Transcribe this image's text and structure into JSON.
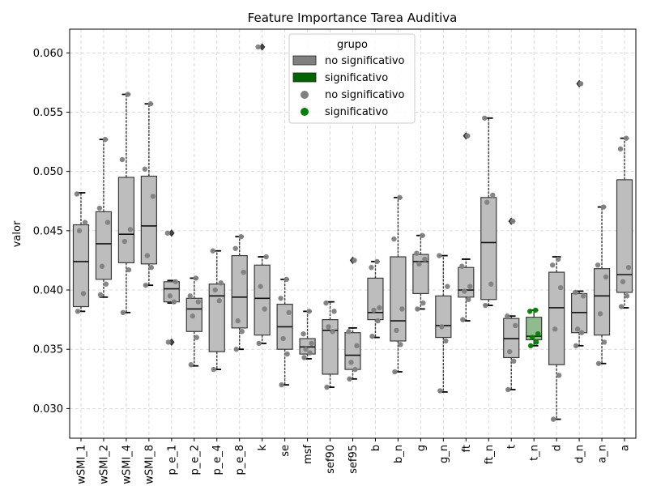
{
  "chart_data": {
    "type": "box",
    "title": "Feature Importance Tarea Auditiva",
    "xlabel": "",
    "ylabel": "valor",
    "ylim": [
      0.0275,
      0.062
    ],
    "yticks": [
      0.03,
      0.035,
      0.04,
      0.045,
      0.05,
      0.055,
      0.06
    ],
    "ytick_labels": [
      "0.030",
      "0.035",
      "0.040",
      "0.045",
      "0.050",
      "0.055",
      "0.060"
    ],
    "grid": true,
    "legend": {
      "title": "grupo",
      "placement": "top-center",
      "entries": [
        {
          "label": "no significativo",
          "kind": "patch",
          "color": "#808080"
        },
        {
          "label": "significativo",
          "kind": "patch",
          "color": "#006400"
        },
        {
          "label": "no significativo",
          "kind": "marker",
          "color": "#808080"
        },
        {
          "label": "significativo",
          "kind": "marker",
          "color": "#008000"
        }
      ]
    },
    "colors": {
      "no_sig_box": "#bdbdbd",
      "sig_box": "#8fbc8f",
      "no_sig_point": "#808080",
      "sig_point": "#008000",
      "edge": "#3a3a3a"
    },
    "boxes": [
      {
        "label": "wSMI_1",
        "group": "no significativo",
        "whislo": 0.0382,
        "q1": 0.0386,
        "med": 0.0424,
        "q3": 0.0455,
        "whishi": 0.0482,
        "fliers": [],
        "points": [
          0.0382,
          0.0397,
          0.045,
          0.0457,
          0.0481
        ]
      },
      {
        "label": "wSMI_2",
        "group": "no significativo",
        "whislo": 0.0394,
        "q1": 0.0409,
        "med": 0.0439,
        "q3": 0.0466,
        "whishi": 0.0527,
        "fliers": [],
        "points": [
          0.0396,
          0.0405,
          0.042,
          0.0457,
          0.0469,
          0.0527
        ]
      },
      {
        "label": "wSMI_4",
        "group": "no significativo",
        "whislo": 0.0381,
        "q1": 0.0423,
        "med": 0.0447,
        "q3": 0.0495,
        "whishi": 0.0565,
        "fliers": [],
        "points": [
          0.0381,
          0.0417,
          0.0441,
          0.0451,
          0.051,
          0.0565
        ]
      },
      {
        "label": "wSMI_8",
        "group": "no significativo",
        "whislo": 0.0404,
        "q1": 0.0422,
        "med": 0.0454,
        "q3": 0.0496,
        "whishi": 0.0557,
        "fliers": [],
        "points": [
          0.0404,
          0.0419,
          0.0429,
          0.0479,
          0.0502,
          0.0557
        ]
      },
      {
        "label": "p_e_1",
        "group": "no significativo",
        "whislo": 0.0389,
        "q1": 0.039,
        "med": 0.0401,
        "q3": 0.0407,
        "whishi": 0.0408,
        "fliers": [
          0.0356,
          0.0448
        ],
        "points": [
          0.0356,
          0.039,
          0.0395,
          0.0407,
          0.0448
        ]
      },
      {
        "label": "p_e_2",
        "group": "no significativo",
        "whislo": 0.0336,
        "q1": 0.0365,
        "med": 0.0384,
        "q3": 0.0393,
        "whishi": 0.041,
        "fliers": [],
        "points": [
          0.0337,
          0.036,
          0.0378,
          0.039,
          0.0395,
          0.041
        ]
      },
      {
        "label": "p_e_4",
        "group": "no significativo",
        "whislo": 0.0333,
        "q1": 0.0348,
        "med": 0.0395,
        "q3": 0.0405,
        "whishi": 0.0433,
        "fliers": [],
        "points": [
          0.0333,
          0.0391,
          0.04,
          0.0406,
          0.0433
        ]
      },
      {
        "label": "p_e_8",
        "group": "no significativo",
        "whislo": 0.035,
        "q1": 0.0368,
        "med": 0.0394,
        "q3": 0.0429,
        "whishi": 0.0445,
        "fliers": [],
        "points": [
          0.035,
          0.0365,
          0.0374,
          0.0415,
          0.0435,
          0.0445
        ]
      },
      {
        "label": "k",
        "group": "no significativo",
        "whislo": 0.0355,
        "q1": 0.0362,
        "med": 0.0393,
        "q3": 0.0421,
        "whishi": 0.0428,
        "fliers": [
          0.0605
        ],
        "points": [
          0.0355,
          0.0384,
          0.0403,
          0.0428,
          0.0605
        ]
      },
      {
        "label": "se",
        "group": "no significativo",
        "whislo": 0.032,
        "q1": 0.035,
        "med": 0.0369,
        "q3": 0.0388,
        "whishi": 0.0409,
        "fliers": [],
        "points": [
          0.032,
          0.0346,
          0.0359,
          0.0381,
          0.0393,
          0.0409
        ]
      },
      {
        "label": "msf",
        "group": "no significativo",
        "whislo": 0.0342,
        "q1": 0.0346,
        "med": 0.0352,
        "q3": 0.0359,
        "whishi": 0.0382,
        "fliers": [],
        "points": [
          0.0343,
          0.0347,
          0.035,
          0.0355,
          0.0363,
          0.0382
        ]
      },
      {
        "label": "sef90",
        "group": "no significativo",
        "whislo": 0.0318,
        "q1": 0.0329,
        "med": 0.0366,
        "q3": 0.0375,
        "whishi": 0.039,
        "fliers": [],
        "points": [
          0.0318,
          0.0365,
          0.0369,
          0.0382,
          0.0389
        ]
      },
      {
        "label": "sef95",
        "group": "no significativo",
        "whislo": 0.0325,
        "q1": 0.0333,
        "med": 0.0345,
        "q3": 0.0364,
        "whishi": 0.0368,
        "fliers": [
          0.0425
        ],
        "points": [
          0.0325,
          0.0333,
          0.0339,
          0.0353,
          0.0365,
          0.0425
        ]
      },
      {
        "label": "b",
        "group": "no significativo",
        "whislo": 0.036,
        "q1": 0.0375,
        "med": 0.0381,
        "q3": 0.041,
        "whishi": 0.0424,
        "fliers": [],
        "points": [
          0.0361,
          0.0374,
          0.0383,
          0.0385,
          0.0419,
          0.0424
        ]
      },
      {
        "label": "b_n",
        "group": "no significativo",
        "whislo": 0.0331,
        "q1": 0.0357,
        "med": 0.0374,
        "q3": 0.0428,
        "whishi": 0.0478,
        "fliers": [],
        "points": [
          0.0331,
          0.0354,
          0.0366,
          0.0384,
          0.0443,
          0.0478
        ]
      },
      {
        "label": "g",
        "group": "no significativo",
        "whislo": 0.0384,
        "q1": 0.0397,
        "med": 0.0424,
        "q3": 0.043,
        "whishi": 0.0446,
        "fliers": [],
        "points": [
          0.0384,
          0.0389,
          0.0422,
          0.0426,
          0.0431,
          0.0446
        ]
      },
      {
        "label": "g_n",
        "group": "no significativo",
        "whislo": 0.0314,
        "q1": 0.036,
        "med": 0.037,
        "q3": 0.0395,
        "whishi": 0.0429,
        "fliers": [],
        "points": [
          0.0315,
          0.0357,
          0.0369,
          0.0403,
          0.0429
        ]
      },
      {
        "label": "ft",
        "group": "no significativo",
        "whislo": 0.0374,
        "q1": 0.0394,
        "med": 0.04,
        "q3": 0.0419,
        "whishi": 0.0426,
        "fliers": [
          0.053
        ],
        "points": [
          0.0375,
          0.0392,
          0.0399,
          0.0403,
          0.042,
          0.053
        ]
      },
      {
        "label": "ft_n",
        "group": "no significativo",
        "whislo": 0.0387,
        "q1": 0.0392,
        "med": 0.044,
        "q3": 0.0478,
        "whishi": 0.0545,
        "fliers": [],
        "points": [
          0.0387,
          0.0405,
          0.0474,
          0.048,
          0.0545
        ]
      },
      {
        "label": "t",
        "group": "no significativo",
        "whislo": 0.0316,
        "q1": 0.0343,
        "med": 0.0359,
        "q3": 0.0376,
        "whishi": 0.0378,
        "fliers": [
          0.0458
        ],
        "points": [
          0.0316,
          0.034,
          0.0348,
          0.037,
          0.0378,
          0.0458
        ]
      },
      {
        "label": "t_n",
        "group": "significativo",
        "whislo": 0.0353,
        "q1": 0.0358,
        "med": 0.0361,
        "q3": 0.0377,
        "whishi": 0.0383,
        "fliers": [],
        "points": [
          0.0353,
          0.0356,
          0.036,
          0.0363,
          0.0382,
          0.0383
        ]
      },
      {
        "label": "d",
        "group": "no significativo",
        "whislo": 0.0291,
        "q1": 0.0337,
        "med": 0.0385,
        "q3": 0.0415,
        "whishi": 0.0428,
        "fliers": [],
        "points": [
          0.0291,
          0.0328,
          0.0367,
          0.0402,
          0.0421,
          0.0426
        ]
      },
      {
        "label": "d_n",
        "group": "no significativo",
        "whislo": 0.0353,
        "q1": 0.0364,
        "med": 0.0381,
        "q3": 0.0397,
        "whishi": 0.0399,
        "fliers": [
          0.0574
        ],
        "points": [
          0.0353,
          0.0364,
          0.0367,
          0.0395,
          0.0398,
          0.0574
        ]
      },
      {
        "label": "a_n",
        "group": "no significativo",
        "whislo": 0.0338,
        "q1": 0.0362,
        "med": 0.0395,
        "q3": 0.0418,
        "whishi": 0.047,
        "fliers": [],
        "points": [
          0.0338,
          0.0356,
          0.038,
          0.0411,
          0.0421,
          0.047
        ]
      },
      {
        "label": "a",
        "group": "no significativo",
        "whislo": 0.0385,
        "q1": 0.0398,
        "med": 0.0413,
        "q3": 0.0493,
        "whishi": 0.0528,
        "fliers": [],
        "points": [
          0.0386,
          0.0395,
          0.0407,
          0.0419,
          0.0519,
          0.0528
        ]
      }
    ]
  }
}
